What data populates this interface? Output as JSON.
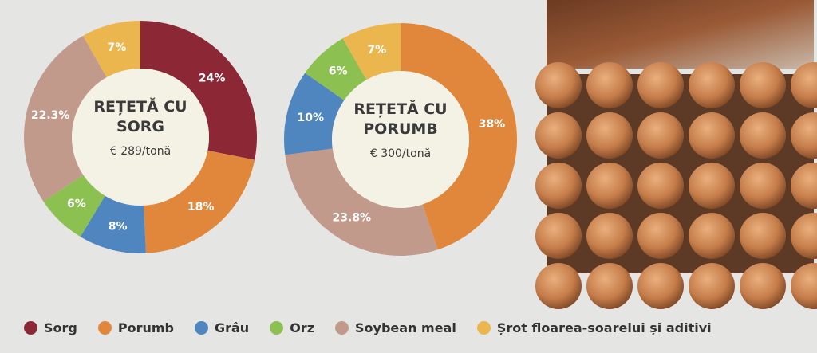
{
  "chart_data": [
    {
      "type": "pie",
      "title": "REȚETĂ CU SORG",
      "subtitle": "€ 289/tonă",
      "categories": [
        "Sorg",
        "Porumb",
        "Grâu",
        "Orz",
        "Soybean meal",
        "Șrot floarea-soarelui și aditivi"
      ],
      "values": [
        24,
        18,
        8,
        6,
        22.3,
        7
      ],
      "value_labels": [
        "24%",
        "18%",
        "8%",
        "6%",
        "22.3%",
        "7%"
      ],
      "colors": [
        "#8c2836",
        "#e0873c",
        "#4f86c0",
        "#8cc152",
        "#c29a8c",
        "#ebb64e"
      ]
    },
    {
      "type": "pie",
      "title": "REȚETĂ CU PORUMB",
      "subtitle": "€ 300/tonă",
      "categories": [
        "Porumb",
        "Soybean meal",
        "Grâu",
        "Orz",
        "Șrot floarea-soarelui și aditivi"
      ],
      "values": [
        38,
        23.8,
        10,
        6,
        7
      ],
      "value_labels": [
        "38%",
        "23.8%",
        "10%",
        "6%",
        "7%"
      ],
      "colors": [
        "#e0873c",
        "#c29a8c",
        "#4f86c0",
        "#8cc152",
        "#ebb64e"
      ]
    }
  ],
  "legend": [
    {
      "name": "Sorg",
      "color": "#8c2836"
    },
    {
      "name": "Porumb",
      "color": "#e0873c"
    },
    {
      "name": "Grâu",
      "color": "#4f86c0"
    },
    {
      "name": "Orz",
      "color": "#8cc152"
    },
    {
      "name": "Soybean meal",
      "color": "#c29a8c"
    },
    {
      "name": "Șrot floarea-soarelui și aditivi",
      "color": "#ebb64e"
    }
  ]
}
